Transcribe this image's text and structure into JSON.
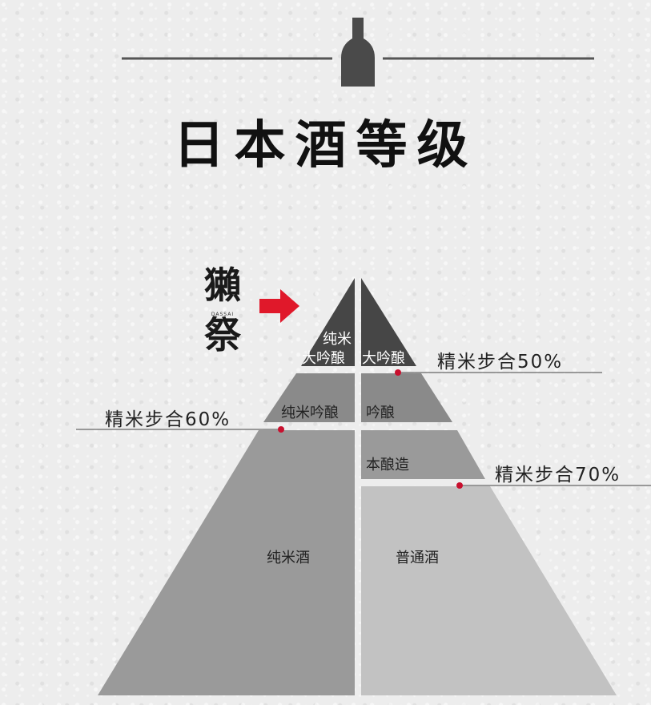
{
  "title": "日本酒等级",
  "brand": {
    "name": "獺祭",
    "romanized": "DASSAI"
  },
  "arrow_color": "#e0182a",
  "pyramid": {
    "levels": {
      "junmai_daiginjo_line1": "纯米",
      "junmai_daiginjo_line2": "大吟酿",
      "daiginjo": "大吟酿",
      "junmai_ginjo": "纯米吟酿",
      "ginjo": "吟酿",
      "honjozo": "本酿造",
      "junmai": "纯米酒",
      "futsu": "普通酒"
    }
  },
  "ratios": {
    "r50": "精米步合50%",
    "r60": "精米步合60%",
    "r70": "精米步合70%"
  },
  "colors": {
    "top_tier": "#464646",
    "middle_tier": "#8a8a8a",
    "bottom_left": "#9a9a9a",
    "bottom_right": "#c2c2c2",
    "pointer_dot": "#c8102e"
  }
}
